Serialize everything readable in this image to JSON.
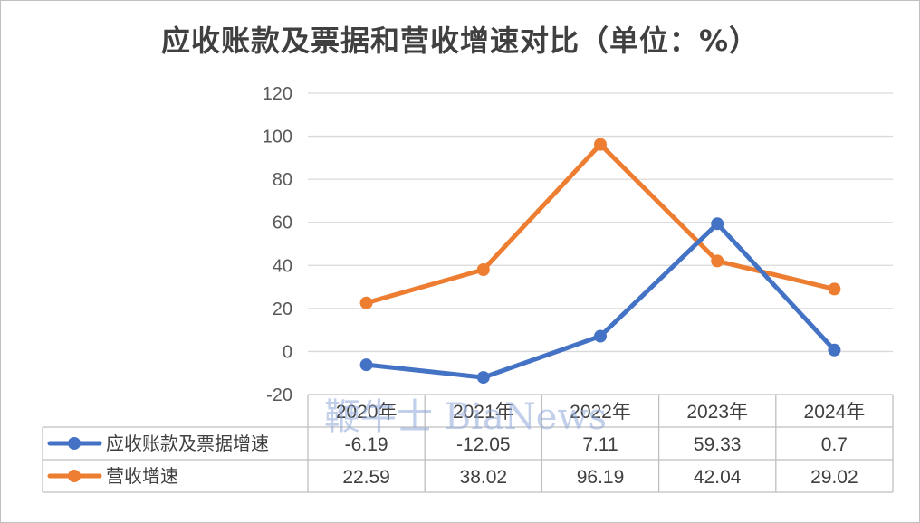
{
  "chart_data": {
    "type": "line",
    "title": "应收账款及票据和营收增速对比（单位：%）",
    "categories": [
      "2020年",
      "2021年",
      "2022年",
      "2023年",
      "2024年"
    ],
    "ylim": [
      -20,
      120
    ],
    "yticks": [
      "120",
      "100",
      "80",
      "60",
      "40",
      "20",
      "0",
      "-20"
    ],
    "grid": true,
    "legend": "data-table",
    "series": [
      {
        "name": "应收账款及票据增速",
        "color": "#4472c4",
        "values": [
          -6.19,
          -12.05,
          7.11,
          59.33,
          0.7
        ],
        "labels": [
          "-6.19",
          "-12.05",
          "7.11",
          "59.33",
          "0.7"
        ]
      },
      {
        "name": "营收增速",
        "color": "#ed7d31",
        "values": [
          22.59,
          38.02,
          96.19,
          42.04,
          29.02
        ],
        "labels": [
          "22.59",
          "38.02",
          "96.19",
          "42.04",
          "29.02"
        ]
      }
    ]
  },
  "watermark": "鞭牛士 BiaNews"
}
